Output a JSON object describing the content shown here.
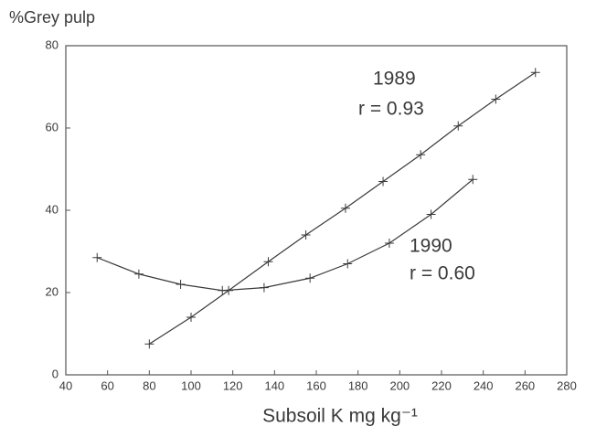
{
  "chart_data": {
    "type": "line",
    "y_label": "%Grey pulp",
    "x_label": "Subsoil K mg kg⁻¹",
    "xlim": [
      40,
      280
    ],
    "xticks": [
      40,
      60,
      80,
      100,
      120,
      140,
      160,
      180,
      200,
      220,
      240,
      260,
      280
    ],
    "ylim": [
      0,
      80
    ],
    "yticks": [
      0,
      20,
      40,
      60,
      80
    ],
    "series": [
      {
        "name": "1989",
        "color": "#3a3a3a",
        "x": [
          80,
          100,
          118,
          137,
          155,
          174,
          192,
          210,
          228,
          246,
          265
        ],
        "values": [
          7.5,
          14,
          20.5,
          27.5,
          34,
          40.5,
          47,
          53.5,
          60.5,
          67,
          73.5
        ]
      },
      {
        "name": "1990",
        "color": "#3a3a3a",
        "x": [
          55,
          75,
          95,
          115,
          135,
          157,
          175,
          195,
          215,
          235
        ],
        "values": [
          28.5,
          24.5,
          22,
          20.5,
          21.2,
          23.5,
          27,
          32,
          39,
          47.5
        ]
      }
    ],
    "annotations": [
      "r = 0.93",
      "r = 0.60"
    ]
  }
}
